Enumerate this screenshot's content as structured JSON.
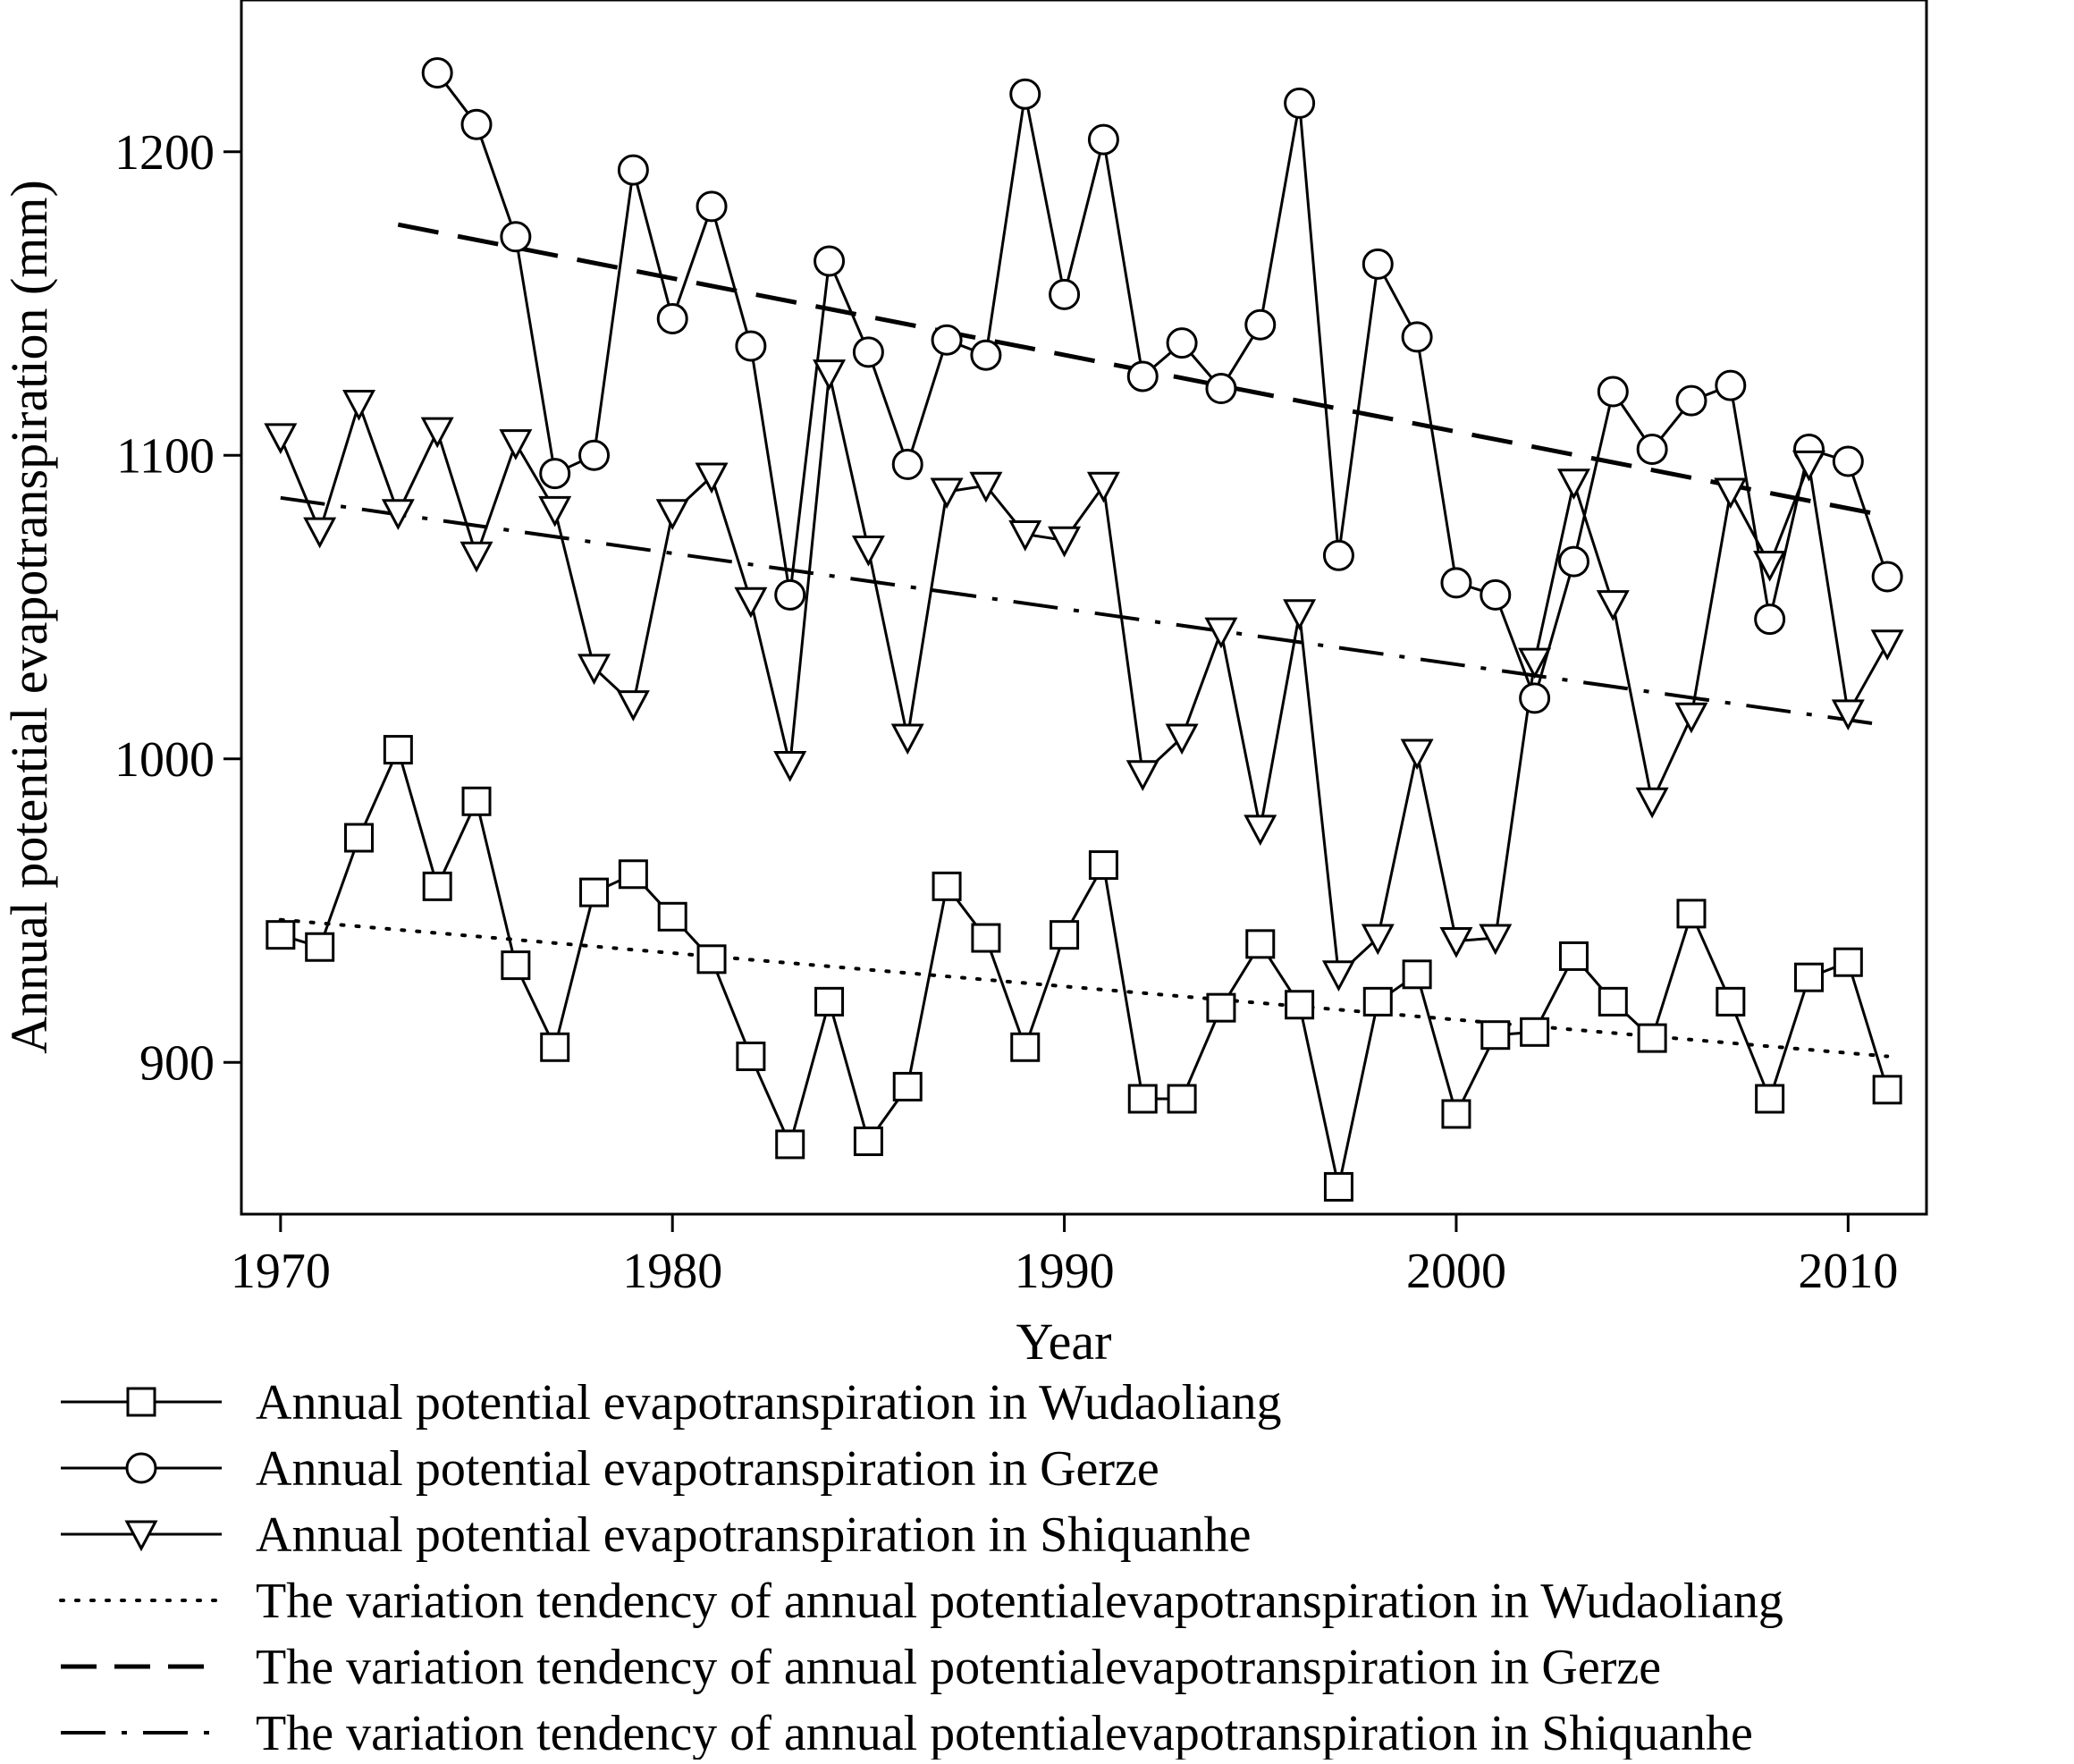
{
  "chart_data": {
    "type": "line",
    "xlabel": "Year",
    "ylabel": "Annual potential evapotranspiration (mm)",
    "xlim": [
      1969,
      2012
    ],
    "ylim": [
      850,
      1250
    ],
    "xticks": [
      1970,
      1980,
      1990,
      2000,
      2010
    ],
    "yticks": [
      900,
      1000,
      1100,
      1200
    ],
    "grid": false,
    "legend_position": "bottom",
    "series": [
      {
        "name": "Annual potential evapotranspiration in Wudaoliang",
        "marker": "square",
        "line_style": "solid",
        "x": [
          1970,
          1971,
          1972,
          1973,
          1974,
          1975,
          1976,
          1977,
          1978,
          1979,
          1980,
          1981,
          1982,
          1983,
          1984,
          1985,
          1986,
          1987,
          1988,
          1989,
          1990,
          1991,
          1992,
          1993,
          1994,
          1995,
          1996,
          1997,
          1998,
          1999,
          2000,
          2001,
          2002,
          2003,
          2004,
          2005,
          2006,
          2007,
          2008,
          2009,
          2010,
          2011
        ],
        "y": [
          942,
          938,
          974,
          1003,
          958,
          986,
          932,
          905,
          956,
          962,
          948,
          934,
          902,
          873,
          920,
          874,
          892,
          958,
          941,
          905,
          942,
          965,
          888,
          888,
          918,
          939,
          919,
          859,
          920,
          929,
          883,
          909,
          910,
          935,
          920,
          908,
          949,
          920,
          888,
          928,
          933,
          891
        ]
      },
      {
        "name": "Annual potential evapotranspiration in Gerze",
        "marker": "circle",
        "line_style": "solid",
        "x": [
          1974,
          1975,
          1976,
          1977,
          1978,
          1979,
          1980,
          1981,
          1982,
          1983,
          1984,
          1985,
          1986,
          1987,
          1988,
          1989,
          1990,
          1991,
          1992,
          1993,
          1994,
          1995,
          1996,
          1997,
          1998,
          1999,
          2000,
          2001,
          2002,
          2003,
          2004,
          2005,
          2006,
          2007,
          2008,
          2009,
          2010,
          2011
        ],
        "y": [
          1226,
          1209,
          1172,
          1094,
          1100,
          1194,
          1145,
          1182,
          1136,
          1054,
          1164,
          1134,
          1097,
          1138,
          1133,
          1219,
          1153,
          1204,
          1126,
          1137,
          1122,
          1143,
          1216,
          1067,
          1163,
          1139,
          1058,
          1054,
          1020,
          1065,
          1121,
          1102,
          1118,
          1123,
          1046,
          1102,
          1098,
          1060
        ]
      },
      {
        "name": "Annual potential evapotranspiration in Shiquanhe",
        "marker": "triangle-down",
        "line_style": "solid",
        "x": [
          1970,
          1971,
          1972,
          1973,
          1974,
          1975,
          1976,
          1977,
          1978,
          1979,
          1980,
          1981,
          1982,
          1983,
          1984,
          1985,
          1986,
          1987,
          1988,
          1989,
          1990,
          1991,
          1992,
          1993,
          1994,
          1995,
          1996,
          1997,
          1998,
          1999,
          2000,
          2001,
          2002,
          2003,
          2004,
          2005,
          2006,
          2007,
          2008,
          2009,
          2010,
          2011
        ],
        "y": [
          1106,
          1075,
          1117,
          1081,
          1108,
          1067,
          1104,
          1082,
          1030,
          1018,
          1081,
          1093,
          1052,
          998,
          1127,
          1069,
          1007,
          1088,
          1090,
          1074,
          1072,
          1090,
          995,
          1007,
          1042,
          977,
          1048,
          929,
          941,
          1002,
          940,
          941,
          1032,
          1091,
          1051,
          986,
          1014,
          1088,
          1064,
          1097,
          1015,
          1038
        ]
      },
      {
        "name": "The variation tendency of annual potentialevapotranspiration in Wudaoliang",
        "marker": "none",
        "line_style": "dotted",
        "x": [
          1970,
          2011
        ],
        "y": [
          947,
          902
        ]
      },
      {
        "name": "The variation tendency of annual potentialevapotranspiration in Gerze",
        "marker": "none",
        "line_style": "dashed",
        "x": [
          1973,
          2011
        ],
        "y": [
          1176,
          1080
        ]
      },
      {
        "name": "The variation tendency of annual potentialevapotranspiration in Shiquanhe",
        "marker": "none",
        "line_style": "dash-dot",
        "x": [
          1970,
          2011
        ],
        "y": [
          1086,
          1011
        ]
      }
    ]
  }
}
